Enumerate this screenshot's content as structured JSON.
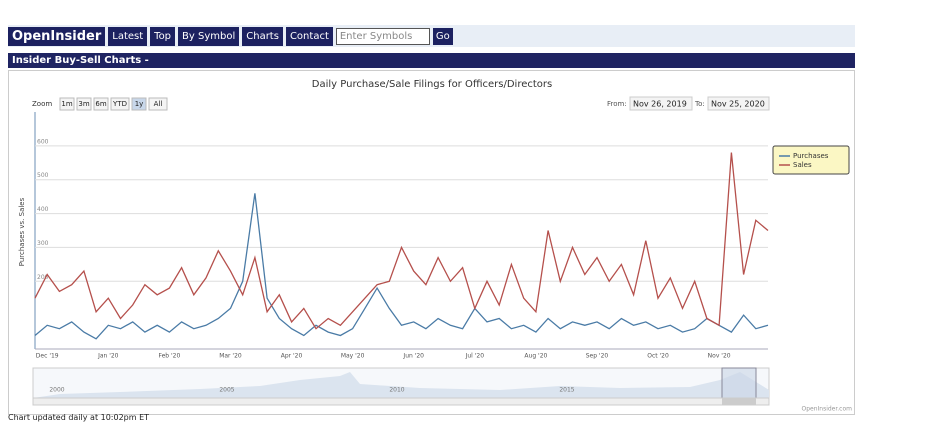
{
  "nav": {
    "brand": "OpenInsider",
    "links": [
      "Latest",
      "Top",
      "By Symbol",
      "Charts",
      "Contact"
    ],
    "search_placeholder": "Enter Symbols",
    "go_button": "Go"
  },
  "section_title": "Insider Buy-Sell Charts -",
  "range_selector": {
    "zoom_label": "Zoom",
    "buttons": [
      "1m",
      "3m",
      "6m",
      "YTD",
      "1y",
      "All"
    ],
    "from_label": "From:",
    "from_value": "Nov 26, 2019",
    "to_label": "To:",
    "to_value": "Nov 25, 2020"
  },
  "chart_data": {
    "type": "line",
    "title": "Daily Purchase/Sale Filings for Officers/Directors",
    "y_label": "Purchases vs. Sales",
    "categories": [
      null,
      "Dec '19",
      null,
      null,
      null,
      null,
      "Jan '20",
      null,
      null,
      null,
      null,
      "Feb '20",
      null,
      null,
      null,
      null,
      "Mar '20",
      null,
      null,
      null,
      null,
      "Apr '20",
      null,
      null,
      null,
      null,
      "May '20",
      null,
      null,
      null,
      null,
      "Jun '20",
      null,
      null,
      null,
      null,
      "Jul '20",
      null,
      null,
      null,
      null,
      "Aug '20",
      null,
      null,
      null,
      null,
      "Sep '20",
      null,
      null,
      null,
      null,
      "Oct '20",
      null,
      null,
      null,
      null,
      "Nov '20",
      null,
      null,
      null,
      null
    ],
    "series": [
      {
        "name": "Purchases",
        "color": "#4a7ba6",
        "values": [
          40,
          70,
          60,
          80,
          50,
          30,
          70,
          60,
          80,
          50,
          70,
          50,
          80,
          60,
          70,
          90,
          120,
          200,
          460,
          150,
          90,
          60,
          40,
          70,
          50,
          40,
          60,
          120,
          180,
          120,
          70,
          80,
          60,
          90,
          70,
          60,
          120,
          80,
          90,
          60,
          70,
          50,
          90,
          60,
          80,
          70,
          80,
          60,
          90,
          70,
          80,
          60,
          70,
          50,
          60,
          90,
          70,
          50,
          100,
          60,
          70
        ]
      },
      {
        "name": "Sales",
        "color": "#b5504c",
        "values": [
          150,
          220,
          170,
          190,
          230,
          110,
          150,
          90,
          130,
          190,
          160,
          180,
          240,
          160,
          210,
          290,
          230,
          160,
          270,
          110,
          160,
          80,
          120,
          60,
          90,
          70,
          110,
          150,
          190,
          200,
          300,
          230,
          190,
          270,
          200,
          240,
          120,
          200,
          130,
          250,
          150,
          110,
          350,
          200,
          300,
          220,
          270,
          200,
          250,
          160,
          320,
          150,
          210,
          120,
          200,
          90,
          70,
          580,
          220,
          380,
          350
        ]
      }
    ],
    "ylim": [
      0,
      700
    ],
    "yticks": [
      200,
      300,
      400,
      500,
      600
    ],
    "grid": true,
    "legend": "top-right"
  },
  "navigator": {
    "labels": [
      "2000",
      "2005",
      "2010",
      "2015"
    ]
  },
  "credit": "OpenInsider.com",
  "footer": "Chart updated daily at 10:02pm ET"
}
